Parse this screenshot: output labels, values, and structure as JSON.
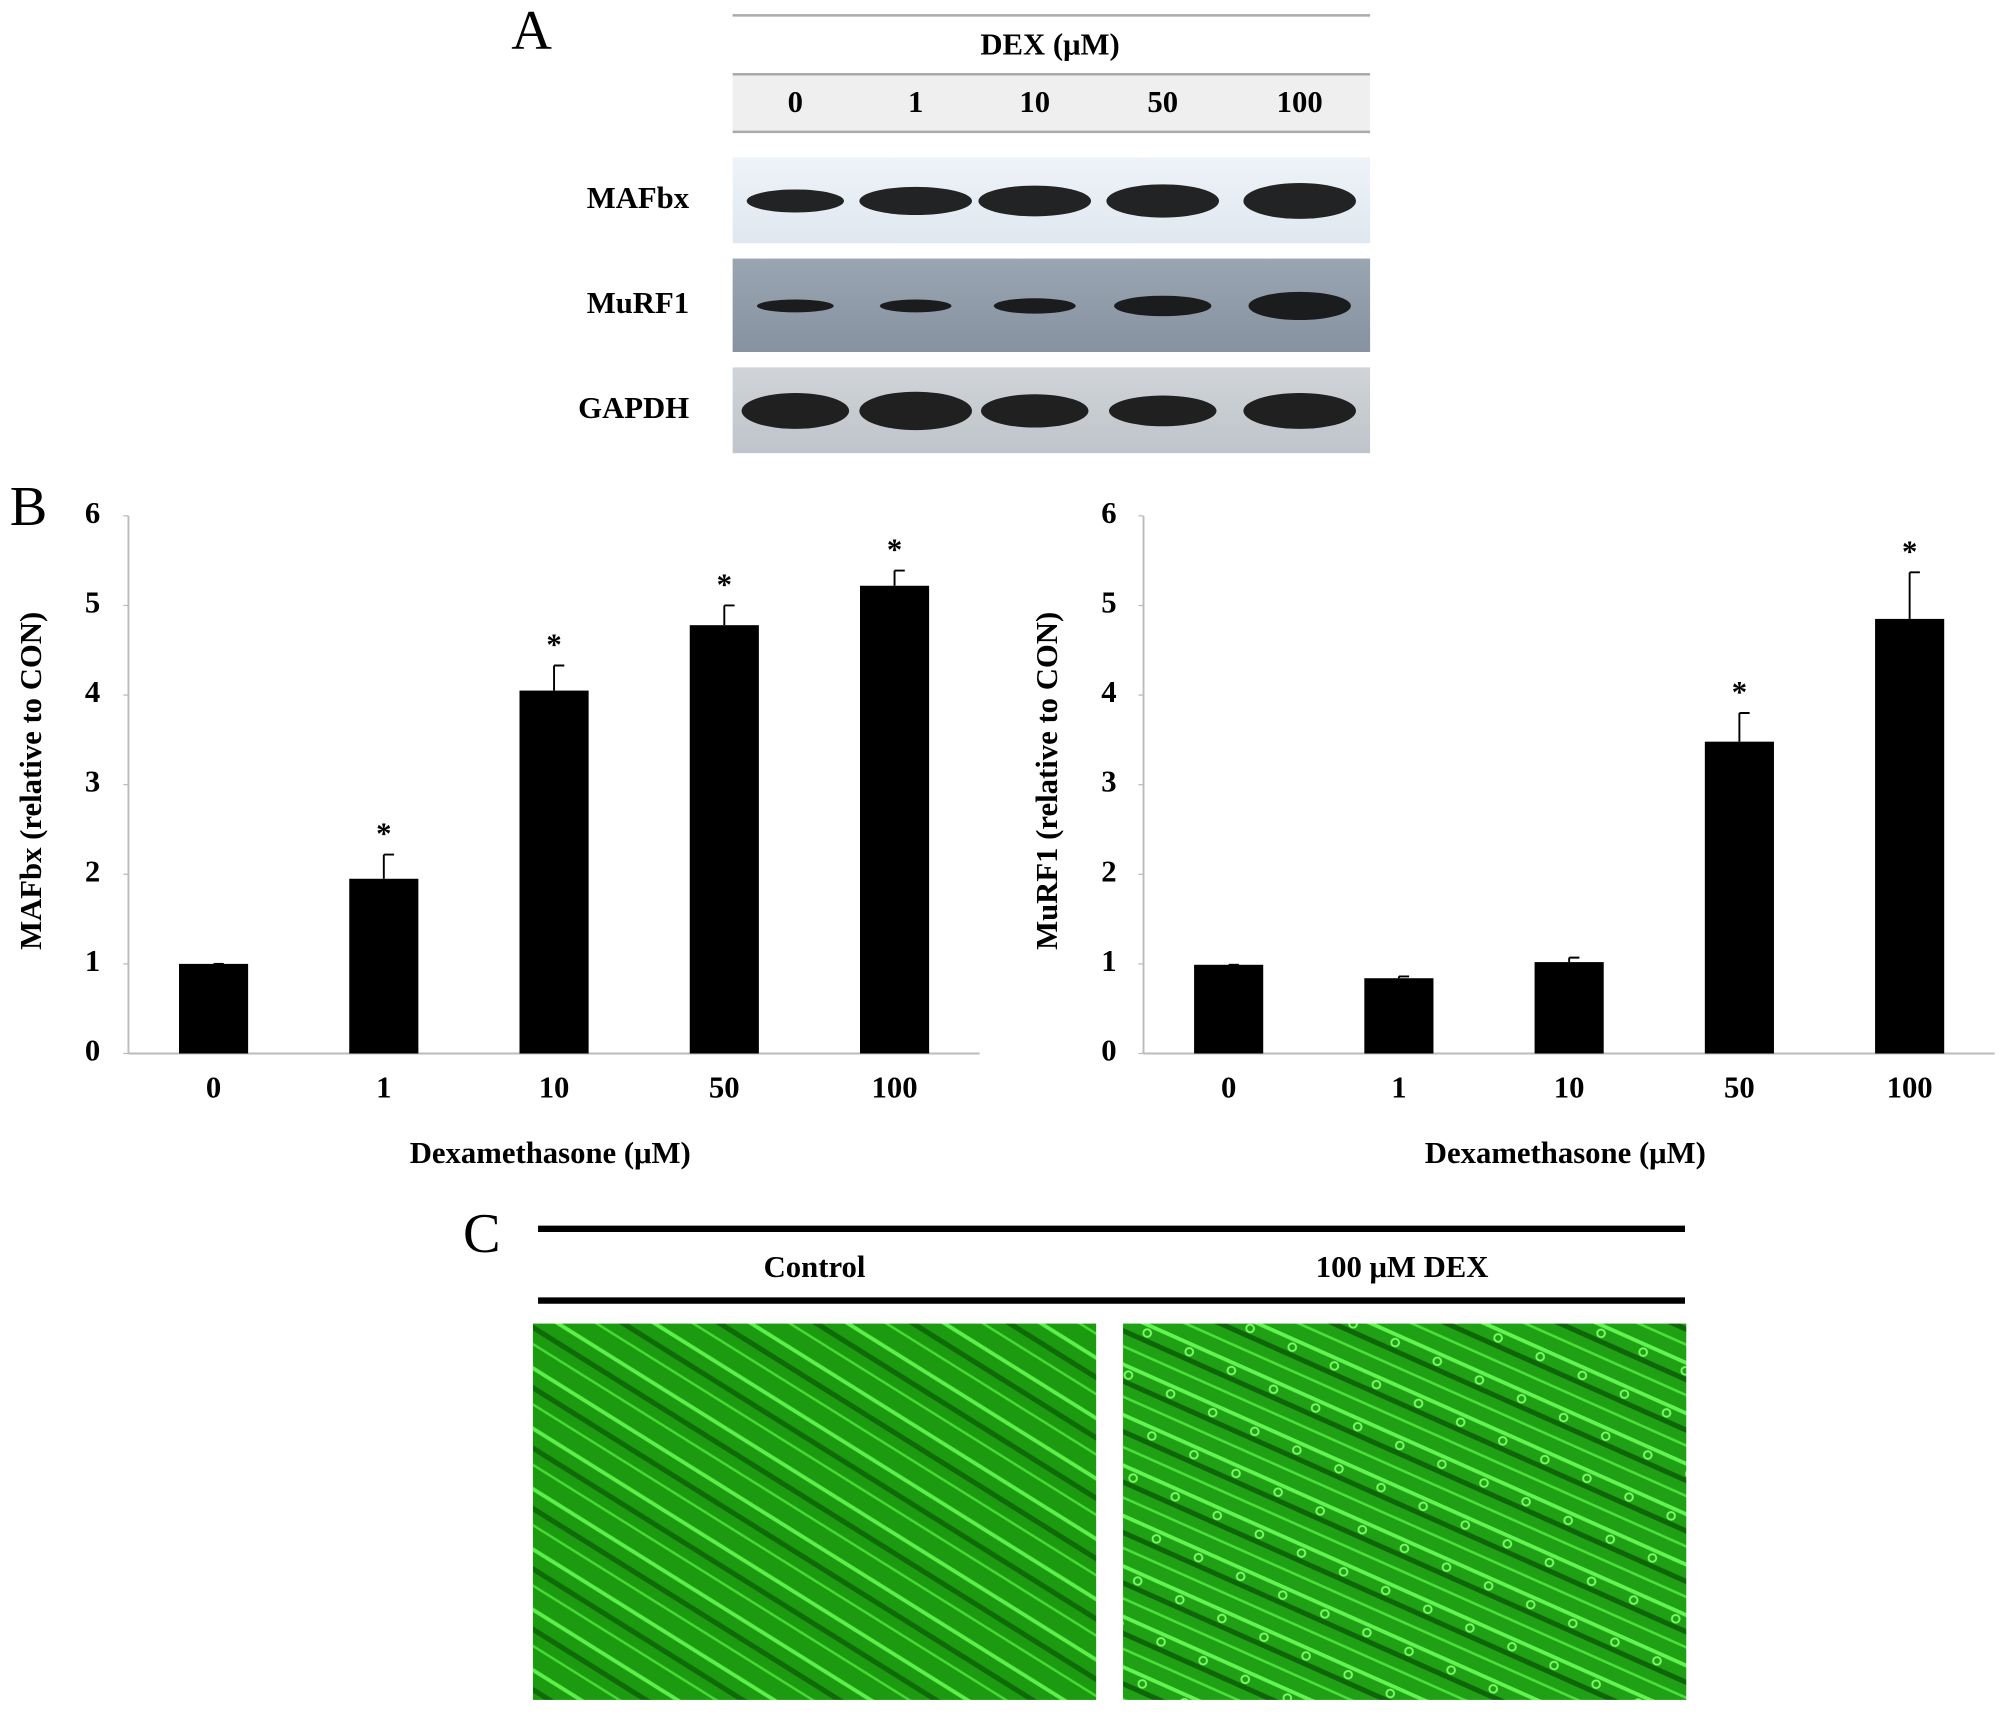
{
  "panel_labels": {
    "a": "A",
    "b": "B",
    "c": "C"
  },
  "panel_a": {
    "header": "DEX (μM)",
    "lanes": [
      "0",
      "1",
      "10",
      "50",
      "100"
    ],
    "blots": [
      "MAFbx",
      "MuRF1",
      "GAPDH"
    ]
  },
  "panel_c": {
    "images": [
      "Control",
      "100 μM DEX"
    ]
  },
  "chart_data": [
    {
      "type": "bar",
      "ylabel": "MAFbx  (relative to CON)",
      "xlabel": "Dexamethasone (μM)",
      "categories": [
        "0",
        "1",
        "10",
        "50",
        "100"
      ],
      "values": [
        1,
        1.95,
        4.05,
        4.78,
        5.22
      ],
      "errors": [
        0,
        0.27,
        0.28,
        0.22,
        0.17
      ],
      "significance": [
        null,
        "*",
        "*",
        "*",
        "*"
      ],
      "color": "#000000",
      "ylim": [
        0,
        6
      ],
      "yticks": [
        0,
        1,
        2,
        3,
        4,
        5,
        6
      ]
    },
    {
      "type": "bar",
      "ylabel": "MuRF1  (relative to CON)",
      "xlabel": "Dexamethasone (μM)",
      "categories": [
        "0",
        "1",
        "10",
        "50",
        "100"
      ],
      "values": [
        0.99,
        0.84,
        1.02,
        3.48,
        4.85
      ],
      "errors": [
        0,
        0.02,
        0.05,
        0.32,
        0.52
      ],
      "significance": [
        null,
        null,
        null,
        "*",
        "*"
      ],
      "color": "#000000",
      "ylim": [
        0,
        6
      ],
      "yticks": [
        0,
        1,
        2,
        3,
        4,
        5,
        6
      ]
    }
  ]
}
